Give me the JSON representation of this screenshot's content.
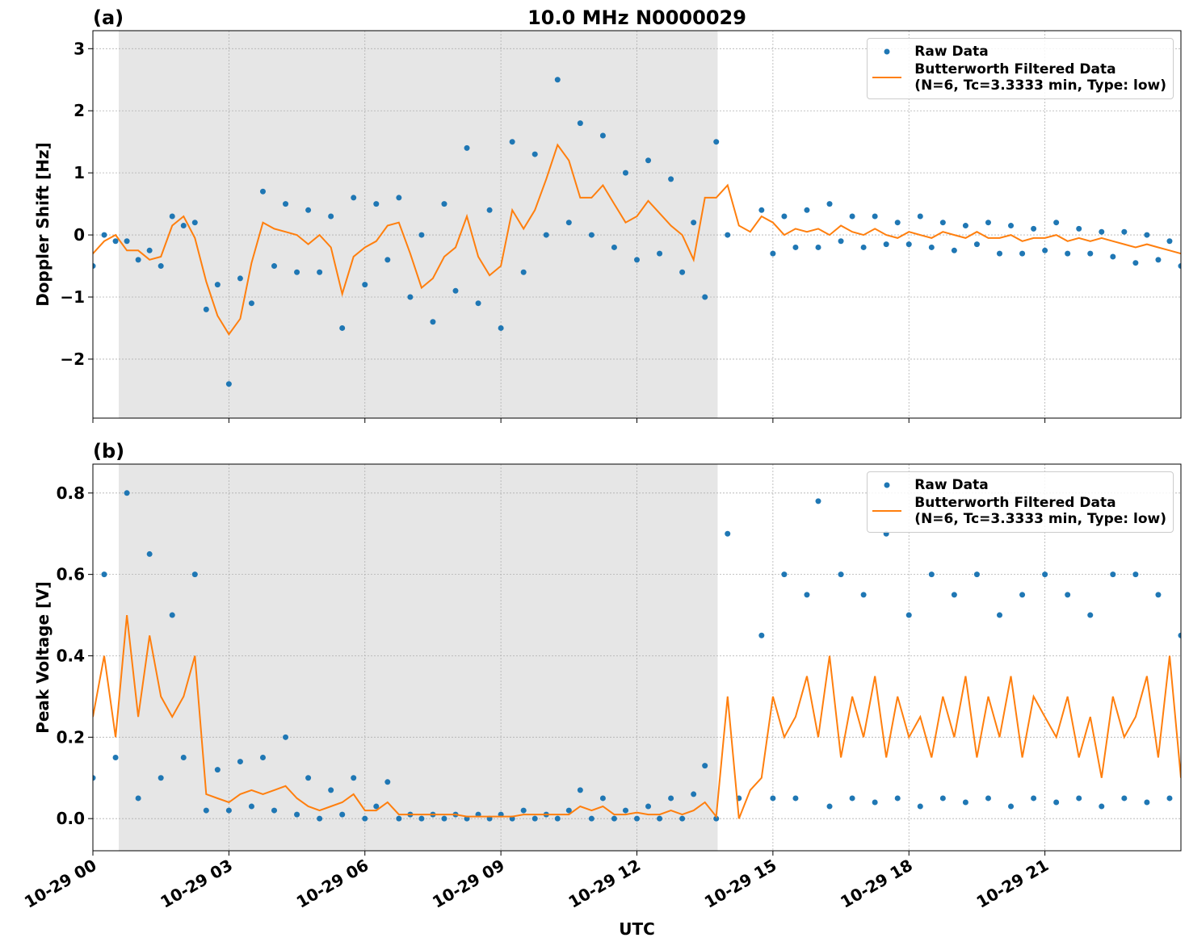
{
  "chart_data": [
    {
      "type": "scatter",
      "label": "(a)",
      "title": "10.0 MHz N0000029",
      "ylabel": "Doppler Shift [Hz]",
      "xlim": [
        0,
        24
      ],
      "ylim": [
        -2.95,
        3.29
      ],
      "yticks": [
        {
          "value": -2,
          "label": "−2"
        },
        {
          "value": -1,
          "label": "−1"
        },
        0,
        1,
        2,
        3
      ],
      "grid": true,
      "legend": "upper right",
      "shade": [
        0.57,
        13.78
      ],
      "shade_color": "#e6e6e6",
      "x": [
        0,
        0.25,
        0.5,
        0.75,
        1,
        1.25,
        1.5,
        1.75,
        2,
        2.25,
        2.5,
        2.75,
        3,
        3.25,
        3.5,
        3.75,
        4,
        4.25,
        4.5,
        4.75,
        5,
        5.25,
        5.5,
        5.75,
        6,
        6.25,
        6.5,
        6.75,
        7,
        7.25,
        7.5,
        7.75,
        8,
        8.25,
        8.5,
        8.75,
        9,
        9.25,
        9.5,
        9.75,
        10,
        10.25,
        10.5,
        10.75,
        11,
        11.25,
        11.5,
        11.75,
        12,
        12.25,
        12.5,
        12.75,
        13,
        13.25,
        13.5,
        13.75,
        14,
        14.25,
        14.5,
        14.75,
        15,
        15.25,
        15.5,
        15.75,
        16,
        16.25,
        16.5,
        16.75,
        17,
        17.25,
        17.5,
        17.75,
        18,
        18.25,
        18.5,
        18.75,
        19,
        19.25,
        19.5,
        19.75,
        20,
        20.25,
        20.5,
        20.75,
        21,
        21.25,
        21.5,
        21.75,
        22,
        22.25,
        22.5,
        22.75,
        23,
        23.25,
        23.5,
        23.75,
        24
      ],
      "series": [
        {
          "name": "Raw Data",
          "color": "#1f77b4",
          "style": "marker",
          "values": [
            -0.5,
            0,
            -0.1,
            -0.1,
            -0.4,
            -0.25,
            -0.5,
            0.3,
            0.15,
            0.2,
            -1.2,
            -0.8,
            -2.4,
            -0.7,
            -1.1,
            0.7,
            -0.5,
            0.5,
            -0.6,
            0.4,
            -0.6,
            0.3,
            -1.5,
            0.6,
            -0.8,
            0.5,
            -0.4,
            0.6,
            -1,
            0,
            -1.4,
            0.5,
            -0.9,
            1.4,
            -1.1,
            0.4,
            -1.5,
            1.5,
            -0.6,
            1.3,
            0,
            2.5,
            0.2,
            1.8,
            0,
            1.6,
            -0.2,
            1,
            -0.4,
            1.2,
            -0.3,
            0.9,
            -0.6,
            0.2,
            -1,
            1.5,
            0,
            null,
            null,
            0.4,
            -0.3,
            0.3,
            -0.2,
            0.4,
            -0.2,
            0.5,
            -0.1,
            0.3,
            -0.2,
            0.3,
            -0.15,
            0.2,
            -0.15,
            0.3,
            -0.2,
            0.2,
            -0.25,
            0.15,
            -0.15,
            0.2,
            -0.3,
            0.15,
            -0.3,
            0.1,
            -0.25,
            0.2,
            -0.3,
            0.1,
            -0.3,
            0.05,
            -0.35,
            0.05,
            -0.45,
            0,
            -0.4,
            -0.1,
            -0.5
          ]
        },
        {
          "name": "Butterworth Filtered Data\n(N=6, Tc=3.3333 min, Type: low)",
          "color": "#ff7f0e",
          "style": "line",
          "values": [
            -0.3,
            -0.1,
            0,
            -0.25,
            -0.25,
            -0.4,
            -0.35,
            0.15,
            0.3,
            -0.05,
            -0.75,
            -1.3,
            -1.6,
            -1.35,
            -0.45,
            0.2,
            0.1,
            0.05,
            0,
            -0.15,
            0,
            -0.2,
            -0.95,
            -0.35,
            -0.2,
            -0.1,
            0.15,
            0.2,
            -0.3,
            -0.85,
            -0.7,
            -0.35,
            -0.2,
            0.3,
            -0.35,
            -0.65,
            -0.5,
            0.4,
            0.1,
            0.4,
            0.9,
            1.45,
            1.2,
            0.6,
            0.6,
            0.8,
            0.5,
            0.2,
            0.3,
            0.55,
            0.35,
            0.15,
            0,
            -0.4,
            0.6,
            0.6,
            0.8,
            0.15,
            0.05,
            0.3,
            0.2,
            0,
            0.1,
            0.05,
            0.1,
            0,
            0.15,
            0.05,
            0,
            0.1,
            0,
            -0.05,
            0.05,
            0,
            -0.05,
            0.05,
            0,
            -0.05,
            0.05,
            -0.05,
            -0.05,
            0,
            -0.1,
            -0.05,
            -0.05,
            0,
            -0.1,
            -0.05,
            -0.1,
            -0.05,
            -0.1,
            -0.15,
            -0.2,
            -0.15,
            -0.2,
            -0.25,
            -0.3
          ]
        }
      ]
    },
    {
      "type": "scatter",
      "label": "(b)",
      "ylabel": "Peak Voltage [V]",
      "xlabel": "UTC",
      "xlim": [
        0,
        24
      ],
      "ylim": [
        -0.079,
        0.871
      ],
      "xticks": [
        {
          "value": 0,
          "label": "10-29 00"
        },
        {
          "value": 3,
          "label": "10-29 03"
        },
        {
          "value": 6,
          "label": "10-29 06"
        },
        {
          "value": 9,
          "label": "10-29 09"
        },
        {
          "value": 12,
          "label": "10-29 12"
        },
        {
          "value": 15,
          "label": "10-29 15"
        },
        {
          "value": 18,
          "label": "10-29 18"
        },
        {
          "value": 21,
          "label": "10-29 21"
        }
      ],
      "yticks": [
        {
          "value": 0,
          "label": "0.0"
        },
        0.2,
        0.4,
        0.6,
        0.8
      ],
      "grid": true,
      "legend": "upper right",
      "shade": [
        0.57,
        13.78
      ],
      "shade_color": "#e6e6e6",
      "x": [
        0,
        0.25,
        0.5,
        0.75,
        1,
        1.25,
        1.5,
        1.75,
        2,
        2.25,
        2.5,
        2.75,
        3,
        3.25,
        3.5,
        3.75,
        4,
        4.25,
        4.5,
        4.75,
        5,
        5.25,
        5.5,
        5.75,
        6,
        6.25,
        6.5,
        6.75,
        7,
        7.25,
        7.5,
        7.75,
        8,
        8.25,
        8.5,
        8.75,
        9,
        9.25,
        9.5,
        9.75,
        10,
        10.25,
        10.5,
        10.75,
        11,
        11.25,
        11.5,
        11.75,
        12,
        12.25,
        12.5,
        12.75,
        13,
        13.25,
        13.5,
        13.75,
        14,
        14.25,
        14.5,
        14.75,
        15,
        15.25,
        15.5,
        15.75,
        16,
        16.25,
        16.5,
        16.75,
        17,
        17.25,
        17.5,
        17.75,
        18,
        18.25,
        18.5,
        18.75,
        19,
        19.25,
        19.5,
        19.75,
        20,
        20.25,
        20.5,
        20.75,
        21,
        21.25,
        21.5,
        21.75,
        22,
        22.25,
        22.5,
        22.75,
        23,
        23.25,
        23.5,
        23.75,
        24
      ],
      "series": [
        {
          "name": "Raw Data",
          "color": "#1f77b4",
          "style": "marker",
          "values": [
            0.1,
            0.6,
            0.15,
            0.8,
            0.05,
            0.65,
            0.1,
            0.5,
            0.15,
            0.6,
            0.02,
            0.12,
            0.02,
            0.14,
            0.03,
            0.15,
            0.02,
            0.2,
            0.01,
            0.1,
            0,
            0.07,
            0.01,
            0.1,
            0,
            0.03,
            0.09,
            0,
            0.01,
            0,
            0.01,
            0,
            0.01,
            0,
            0.01,
            0,
            0.01,
            0,
            0.02,
            0,
            0.01,
            0,
            0.02,
            0.07,
            0,
            0.05,
            0,
            0.02,
            0,
            0.03,
            0,
            0.05,
            0,
            0.06,
            0.13,
            0,
            0.7,
            0.05,
            null,
            0.45,
            0.05,
            0.6,
            0.05,
            0.55,
            0.78,
            0.03,
            0.6,
            0.05,
            0.55,
            0.04,
            0.7,
            0.05,
            0.5,
            0.03,
            0.6,
            0.05,
            0.55,
            0.04,
            0.6,
            0.05,
            0.5,
            0.03,
            0.55,
            0.05,
            0.6,
            0.04,
            0.55,
            0.05,
            0.5,
            0.03,
            0.6,
            0.05,
            0.6,
            0.04,
            0.55,
            0.05,
            0.45
          ]
        },
        {
          "name": "Butterworth Filtered Data\n(N=6, Tc=3.3333 min, Type: low)",
          "color": "#ff7f0e",
          "style": "line",
          "values": [
            0.25,
            0.4,
            0.2,
            0.5,
            0.25,
            0.45,
            0.3,
            0.25,
            0.3,
            0.4,
            0.06,
            0.05,
            0.04,
            0.06,
            0.07,
            0.06,
            0.07,
            0.08,
            0.05,
            0.03,
            0.02,
            0.03,
            0.04,
            0.06,
            0.02,
            0.02,
            0.04,
            0.01,
            0.01,
            0.01,
            0.01,
            0.01,
            0.01,
            0.005,
            0.005,
            0.005,
            0.005,
            0.005,
            0.01,
            0.01,
            0.01,
            0.01,
            0.01,
            0.03,
            0.02,
            0.03,
            0.01,
            0.01,
            0.015,
            0.01,
            0.01,
            0.02,
            0.01,
            0.02,
            0.04,
            0.005,
            0.3,
            0,
            0.07,
            0.1,
            0.3,
            0.2,
            0.25,
            0.35,
            0.2,
            0.4,
            0.15,
            0.3,
            0.2,
            0.35,
            0.15,
            0.3,
            0.2,
            0.25,
            0.15,
            0.3,
            0.2,
            0.35,
            0.15,
            0.3,
            0.2,
            0.35,
            0.15,
            0.3,
            0.25,
            0.2,
            0.3,
            0.15,
            0.25,
            0.1,
            0.3,
            0.2,
            0.25,
            0.35,
            0.15,
            0.4,
            0.1
          ]
        }
      ]
    }
  ]
}
